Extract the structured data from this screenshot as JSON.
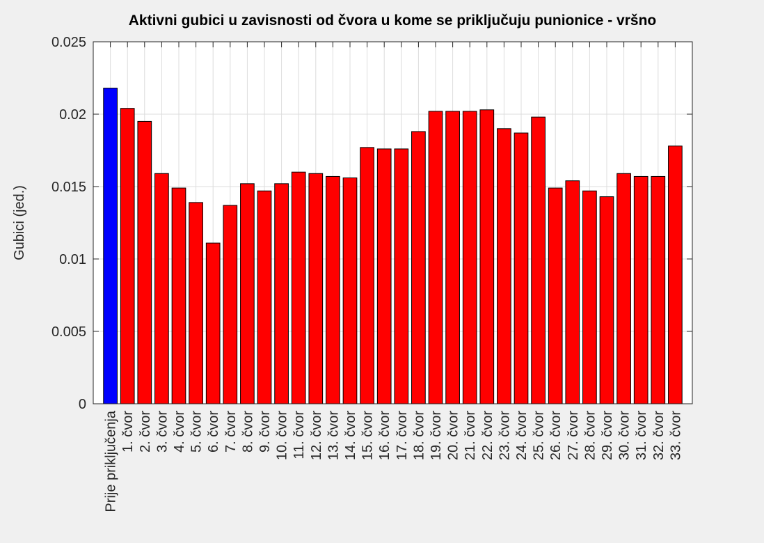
{
  "chart_data": {
    "type": "bar",
    "title": "Aktivni gubici u zavisnosti od čvora u kome se priključuju punionice - vršno",
    "ylabel": "Gubici (jed.)",
    "categories": [
      "Prije priključenja",
      "1. čvor",
      "2. čvor",
      "3. čvor",
      "4. čvor",
      "5. čvor",
      "6. čvor",
      "7. čvor",
      "8. čvor",
      "9. čvor",
      "10. čvor",
      "11. čvor",
      "12. čvor",
      "13. čvor",
      "14. čvor",
      "15. čvor",
      "16. čvor",
      "17. čvor",
      "18. čvor",
      "19. čvor",
      "20. čvor",
      "21. čvor",
      "22. čvor",
      "23. čvor",
      "24. čvor",
      "25. čvor",
      "26. čvor",
      "27. čvor",
      "28. čvor",
      "29. čvor",
      "30. čvor",
      "31. čvor",
      "32. čvor",
      "33. čvor"
    ],
    "values": [
      0.0218,
      0.0204,
      0.0195,
      0.0159,
      0.0149,
      0.0139,
      0.0111,
      0.0137,
      0.0152,
      0.0147,
      0.0152,
      0.016,
      0.0159,
      0.0157,
      0.0156,
      0.0177,
      0.0176,
      0.0176,
      0.0188,
      0.0202,
      0.0202,
      0.0202,
      0.0203,
      0.019,
      0.0187,
      0.0198,
      0.0149,
      0.0154,
      0.0147,
      0.0143,
      0.0159,
      0.0157,
      0.0157,
      0.0178
    ],
    "colors": [
      "#0000ff",
      "#ff0000",
      "#ff0000",
      "#ff0000",
      "#ff0000",
      "#ff0000",
      "#ff0000",
      "#ff0000",
      "#ff0000",
      "#ff0000",
      "#ff0000",
      "#ff0000",
      "#ff0000",
      "#ff0000",
      "#ff0000",
      "#ff0000",
      "#ff0000",
      "#ff0000",
      "#ff0000",
      "#ff0000",
      "#ff0000",
      "#ff0000",
      "#ff0000",
      "#ff0000",
      "#ff0000",
      "#ff0000",
      "#ff0000",
      "#ff0000",
      "#ff0000",
      "#ff0000",
      "#ff0000",
      "#ff0000",
      "#ff0000",
      "#ff0000"
    ],
    "ylim": [
      0,
      0.025
    ],
    "yticks": [
      0,
      0.005,
      0.01,
      0.015,
      0.02,
      0.025
    ],
    "grid": true
  }
}
